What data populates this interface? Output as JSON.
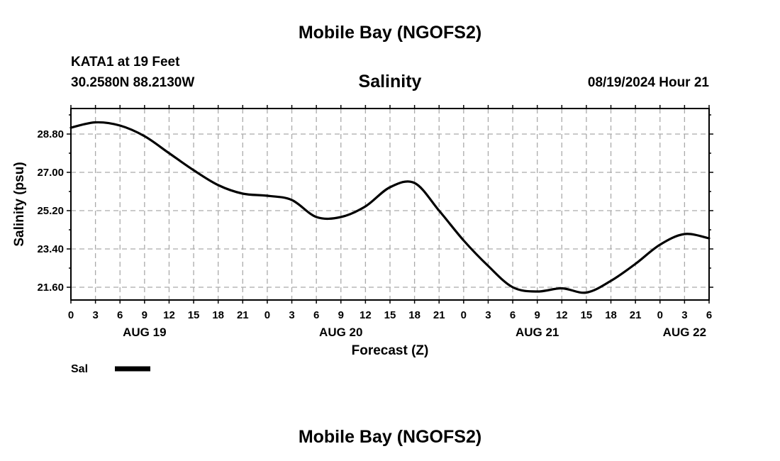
{
  "header": {
    "title": "Mobile Bay (NGOFS2)",
    "station": "KATA1 at 19 Feet",
    "location": "30.2580N  88.2130W",
    "timestamp": "08/19/2024 Hour 21"
  },
  "footer": {
    "title": "Mobile Bay (NGOFS2)"
  },
  "chart_data": {
    "type": "line",
    "title": "Salinity",
    "xlabel": "Forecast (Z)",
    "ylabel": "Salinity (psu)",
    "x_unit": "hours from 00Z AUG 19",
    "xlim": [
      0,
      78
    ],
    "ylim": [
      21.0,
      30.0
    ],
    "y_ticks": [
      "21.60",
      "23.40",
      "25.20",
      "27.00",
      "28.80"
    ],
    "y_tick_values": [
      21.6,
      23.4,
      25.2,
      27.0,
      28.8
    ],
    "x_ticks": [
      "0",
      "3",
      "6",
      "9",
      "12",
      "15",
      "18",
      "21",
      "0",
      "3",
      "6",
      "9",
      "12",
      "15",
      "18",
      "21",
      "0",
      "3",
      "6",
      "9",
      "12",
      "15",
      "18",
      "21",
      "0",
      "3",
      "6"
    ],
    "date_labels": [
      {
        "label": "AUG 19",
        "hour": 9
      },
      {
        "label": "AUG 20",
        "hour": 33
      },
      {
        "label": "AUG 21",
        "hour": 57
      },
      {
        "label": "AUG 22",
        "hour": 75
      }
    ],
    "grid": true,
    "legend_position": "bottom-left",
    "series": [
      {
        "name": "Sal",
        "color": "#000000",
        "x": [
          0,
          3,
          6,
          9,
          12,
          15,
          18,
          21,
          24,
          27,
          30,
          33,
          36,
          39,
          42,
          45,
          48,
          51,
          54,
          57,
          60,
          63,
          66,
          69,
          72,
          75,
          78
        ],
        "y": [
          29.1,
          29.35,
          29.2,
          28.7,
          27.9,
          27.1,
          26.4,
          26.0,
          25.9,
          25.7,
          24.9,
          24.9,
          25.4,
          26.3,
          26.5,
          25.2,
          23.8,
          22.6,
          21.6,
          21.4,
          21.55,
          21.35,
          21.9,
          22.7,
          23.6,
          24.1,
          23.9
        ]
      }
    ]
  }
}
